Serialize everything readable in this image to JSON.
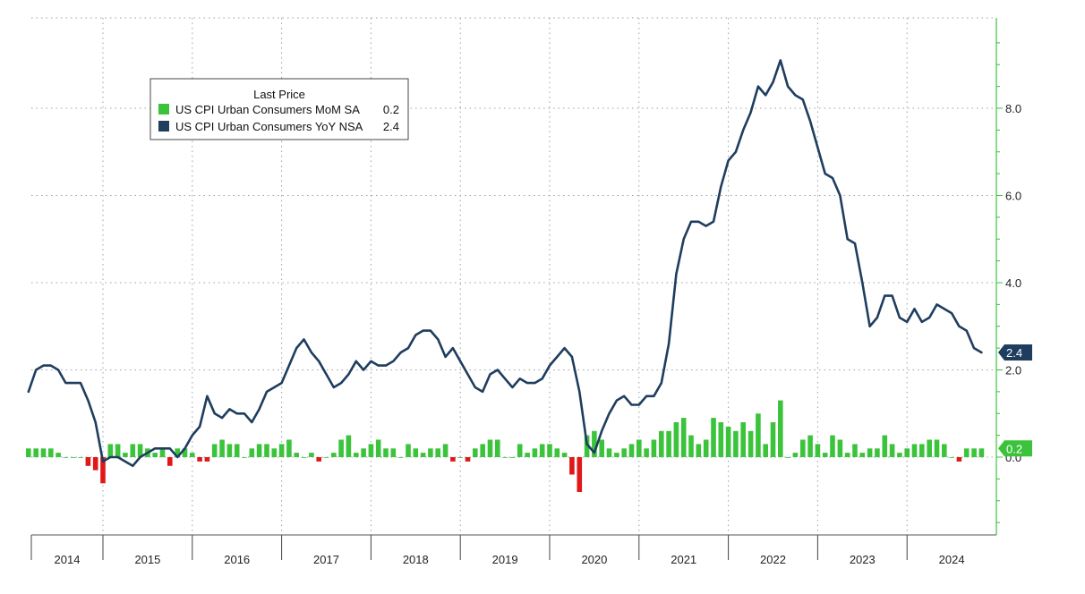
{
  "chart_data": {
    "type": "bar+line",
    "legend": {
      "title": "Last Price",
      "placement": "top-left",
      "entries": [
        {
          "label": "US CPI Urban Consumers MoM SA",
          "value": "0.2"
        },
        {
          "label": "US CPI Urban Consumers YoY NSA",
          "value": "2.4"
        }
      ]
    },
    "yaxis": {
      "side": "right",
      "ylim": [
        -1.8,
        10.0
      ],
      "ticks": [
        0,
        2,
        4,
        6,
        8
      ],
      "tick_labels": [
        "0.0",
        "2.0",
        "4.0",
        "6.0",
        "8.0"
      ]
    },
    "xaxis": {
      "years": [
        "2014",
        "2015",
        "2016",
        "2017",
        "2018",
        "2019",
        "2020",
        "2021",
        "2022",
        "2023",
        "2024"
      ],
      "start_month": "2014-03",
      "end_month": "2024-07"
    },
    "grid": true,
    "last_value_badges": {
      "yoy": "2.4",
      "mom": "0.2"
    },
    "colors": {
      "yoy_line": "#1f3d5e",
      "mom_positive": "#3cc33c",
      "mom_negative": "#e01818",
      "axis": "#3cc33c",
      "grid": "#9aa0a6"
    },
    "series": [
      {
        "name": "US CPI Urban Consumers YoY NSA",
        "kind": "line",
        "values": [
          1.5,
          2.0,
          2.1,
          2.1,
          2.0,
          1.7,
          1.7,
          1.7,
          1.3,
          0.8,
          -0.1,
          0.0,
          0.0,
          -0.1,
          -0.2,
          0.0,
          0.1,
          0.2,
          0.2,
          0.2,
          0.0,
          0.2,
          0.5,
          0.7,
          1.4,
          1.0,
          0.9,
          1.1,
          1.0,
          1.0,
          0.8,
          1.1,
          1.5,
          1.6,
          1.7,
          2.1,
          2.5,
          2.7,
          2.4,
          2.2,
          1.9,
          1.6,
          1.7,
          1.9,
          2.2,
          2.0,
          2.2,
          2.1,
          2.1,
          2.2,
          2.4,
          2.5,
          2.8,
          2.9,
          2.9,
          2.7,
          2.3,
          2.5,
          2.2,
          1.9,
          1.6,
          1.5,
          1.9,
          2.0,
          1.8,
          1.6,
          1.8,
          1.7,
          1.7,
          1.8,
          2.1,
          2.3,
          2.5,
          2.3,
          1.5,
          0.3,
          0.1,
          0.6,
          1.0,
          1.3,
          1.4,
          1.2,
          1.2,
          1.4,
          1.4,
          1.7,
          2.6,
          4.2,
          5.0,
          5.4,
          5.4,
          5.3,
          5.4,
          6.2,
          6.8,
          7.0,
          7.5,
          7.9,
          8.5,
          8.3,
          8.6,
          9.1,
          8.5,
          8.3,
          8.2,
          7.7,
          7.1,
          6.5,
          6.4,
          6.0,
          5.0,
          4.9,
          4.0,
          3.0,
          3.2,
          3.7,
          3.7,
          3.2,
          3.1,
          3.4,
          3.1,
          3.2,
          3.5,
          3.4,
          3.3,
          3.0,
          2.9,
          2.5,
          2.4
        ]
      },
      {
        "name": "US CPI Urban Consumers MoM SA",
        "kind": "bar",
        "values": [
          0.2,
          0.2,
          0.2,
          0.2,
          0.1,
          0.0,
          0.0,
          0.0,
          -0.2,
          -0.3,
          -0.6,
          0.3,
          0.3,
          0.1,
          0.3,
          0.3,
          0.2,
          0.1,
          0.2,
          -0.2,
          0.2,
          0.2,
          0.1,
          -0.1,
          -0.1,
          0.3,
          0.4,
          0.3,
          0.3,
          0.0,
          0.2,
          0.3,
          0.3,
          0.2,
          0.3,
          0.4,
          0.1,
          0.0,
          0.1,
          -0.1,
          0.0,
          0.1,
          0.4,
          0.5,
          0.1,
          0.2,
          0.3,
          0.4,
          0.2,
          0.2,
          0.0,
          0.3,
          0.2,
          0.1,
          0.2,
          0.2,
          0.3,
          -0.1,
          0.0,
          -0.1,
          0.2,
          0.3,
          0.4,
          0.4,
          0.0,
          0.0,
          0.3,
          0.1,
          0.2,
          0.3,
          0.3,
          0.2,
          0.1,
          -0.4,
          -0.8,
          0.5,
          0.6,
          0.4,
          0.2,
          0.1,
          0.2,
          0.3,
          0.4,
          0.2,
          0.4,
          0.6,
          0.6,
          0.8,
          0.9,
          0.5,
          0.3,
          0.4,
          0.9,
          0.8,
          0.7,
          0.6,
          0.8,
          0.6,
          1.0,
          0.3,
          0.8,
          1.3,
          0.0,
          0.1,
          0.4,
          0.5,
          0.3,
          0.1,
          0.5,
          0.4,
          0.1,
          0.3,
          0.1,
          0.2,
          0.2,
          0.5,
          0.3,
          0.1,
          0.2,
          0.3,
          0.3,
          0.4,
          0.4,
          0.3,
          0.0,
          -0.1,
          0.2,
          0.2,
          0.2
        ]
      }
    ]
  }
}
